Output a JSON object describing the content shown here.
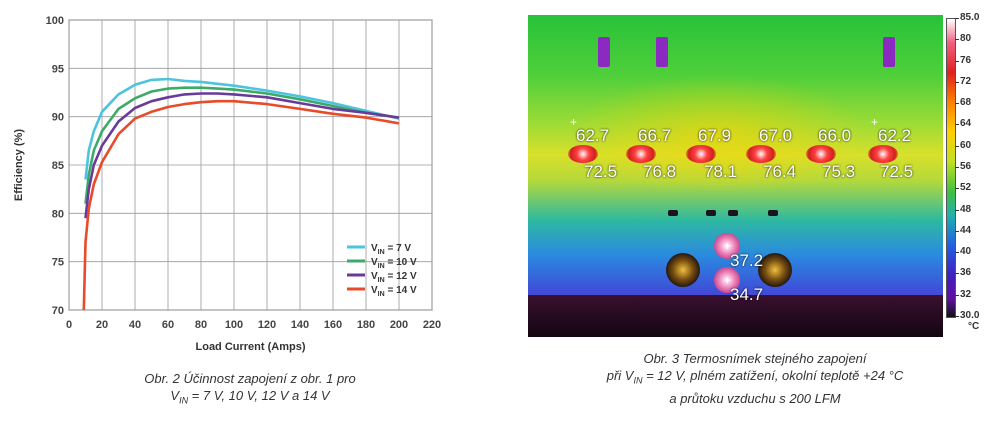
{
  "chart_data": {
    "type": "line",
    "title": "",
    "xlabel": "Load Current (Amps)",
    "ylabel": "Efficiency (%)",
    "xlim": [
      0,
      220
    ],
    "ylim": [
      70,
      100
    ],
    "xticks": [
      0,
      20,
      40,
      60,
      80,
      100,
      120,
      140,
      160,
      180,
      200,
      220
    ],
    "yticks": [
      70,
      75,
      80,
      85,
      90,
      95,
      100
    ],
    "grid": true,
    "legend_position": "bottom-right",
    "series": [
      {
        "name": "V_IN = 7 V",
        "name_main": "V",
        "name_sub": "IN",
        "name_rest": " = 7 V",
        "color": "#4dc3e0",
        "x": [
          10,
          12,
          15,
          20,
          30,
          40,
          50,
          60,
          70,
          80,
          90,
          100,
          120,
          140,
          160,
          180,
          200
        ],
        "y": [
          83.5,
          86.5,
          88.5,
          90.5,
          92.3,
          93.3,
          93.8,
          93.9,
          93.7,
          93.6,
          93.4,
          93.2,
          92.7,
          92.1,
          91.4,
          90.6,
          89.8
        ]
      },
      {
        "name": "V_IN = 10 V",
        "name_main": "V",
        "name_sub": "IN",
        "name_rest": " = 10 V",
        "color": "#3daa6a",
        "x": [
          10,
          12,
          15,
          20,
          30,
          40,
          50,
          60,
          70,
          80,
          90,
          100,
          120,
          140,
          160,
          180,
          200
        ],
        "y": [
          81.0,
          84.0,
          86.5,
          88.5,
          90.8,
          91.9,
          92.6,
          92.9,
          93.0,
          93.0,
          92.9,
          92.8,
          92.4,
          91.8,
          91.1,
          90.4,
          89.9
        ]
      },
      {
        "name": "V_IN = 12 V",
        "name_main": "V",
        "name_sub": "IN",
        "name_rest": " = 12 V",
        "color": "#6a3a9a",
        "x": [
          10,
          12,
          15,
          20,
          30,
          40,
          50,
          60,
          70,
          80,
          90,
          100,
          120,
          140,
          160,
          180,
          200
        ],
        "y": [
          79.5,
          82.5,
          85.0,
          87.0,
          89.5,
          90.9,
          91.6,
          92.0,
          92.3,
          92.4,
          92.4,
          92.3,
          92.0,
          91.4,
          90.8,
          90.4,
          89.9
        ]
      },
      {
        "name": "V_IN = 14 V",
        "name_main": "V",
        "name_sub": "IN",
        "name_rest": " = 14 V",
        "color": "#e84a2a",
        "x": [
          9,
          10,
          12,
          15,
          20,
          30,
          40,
          50,
          60,
          70,
          80,
          90,
          100,
          120,
          140,
          160,
          180,
          200
        ],
        "y": [
          70.0,
          77.0,
          80.5,
          83.0,
          85.3,
          88.2,
          89.8,
          90.5,
          91.0,
          91.3,
          91.5,
          91.6,
          91.6,
          91.3,
          90.8,
          90.3,
          89.9,
          89.3
        ]
      }
    ]
  },
  "captions": {
    "left_line1": "Obr. 2  Účinnost zapojení z obr. 1 pro",
    "left_line2_a": "V",
    "left_line2_sub": "IN",
    "left_line2_b": " = 7 V, 10 V, 12 V a 14 V",
    "right_line1": "Obr. 3  Termosnímek stejného zapojení",
    "right_line2_a": "při V",
    "right_line2_sub": "IN",
    "right_line2_b": " = 12 V, plném zatížení, okolní teplotě +24 °C",
    "right_line3": "a průtoku vzduchu s 200 LFM"
  },
  "thermal": {
    "labels_top": [
      "62.7",
      "66.7",
      "67.9",
      "67.0",
      "66.0",
      "62.2"
    ],
    "labels_bottom": [
      "72.5",
      "76.8",
      "78.1",
      "76.4",
      "75.3",
      "72.5"
    ],
    "label_mid1": "37.2",
    "label_mid2": "34.7",
    "colorbar_ticks": [
      "85.0",
      "80",
      "76",
      "72",
      "68",
      "64",
      "60",
      "56",
      "52",
      "48",
      "44",
      "40",
      "36",
      "32",
      "30.0"
    ],
    "colorbar_unit": "°C"
  }
}
